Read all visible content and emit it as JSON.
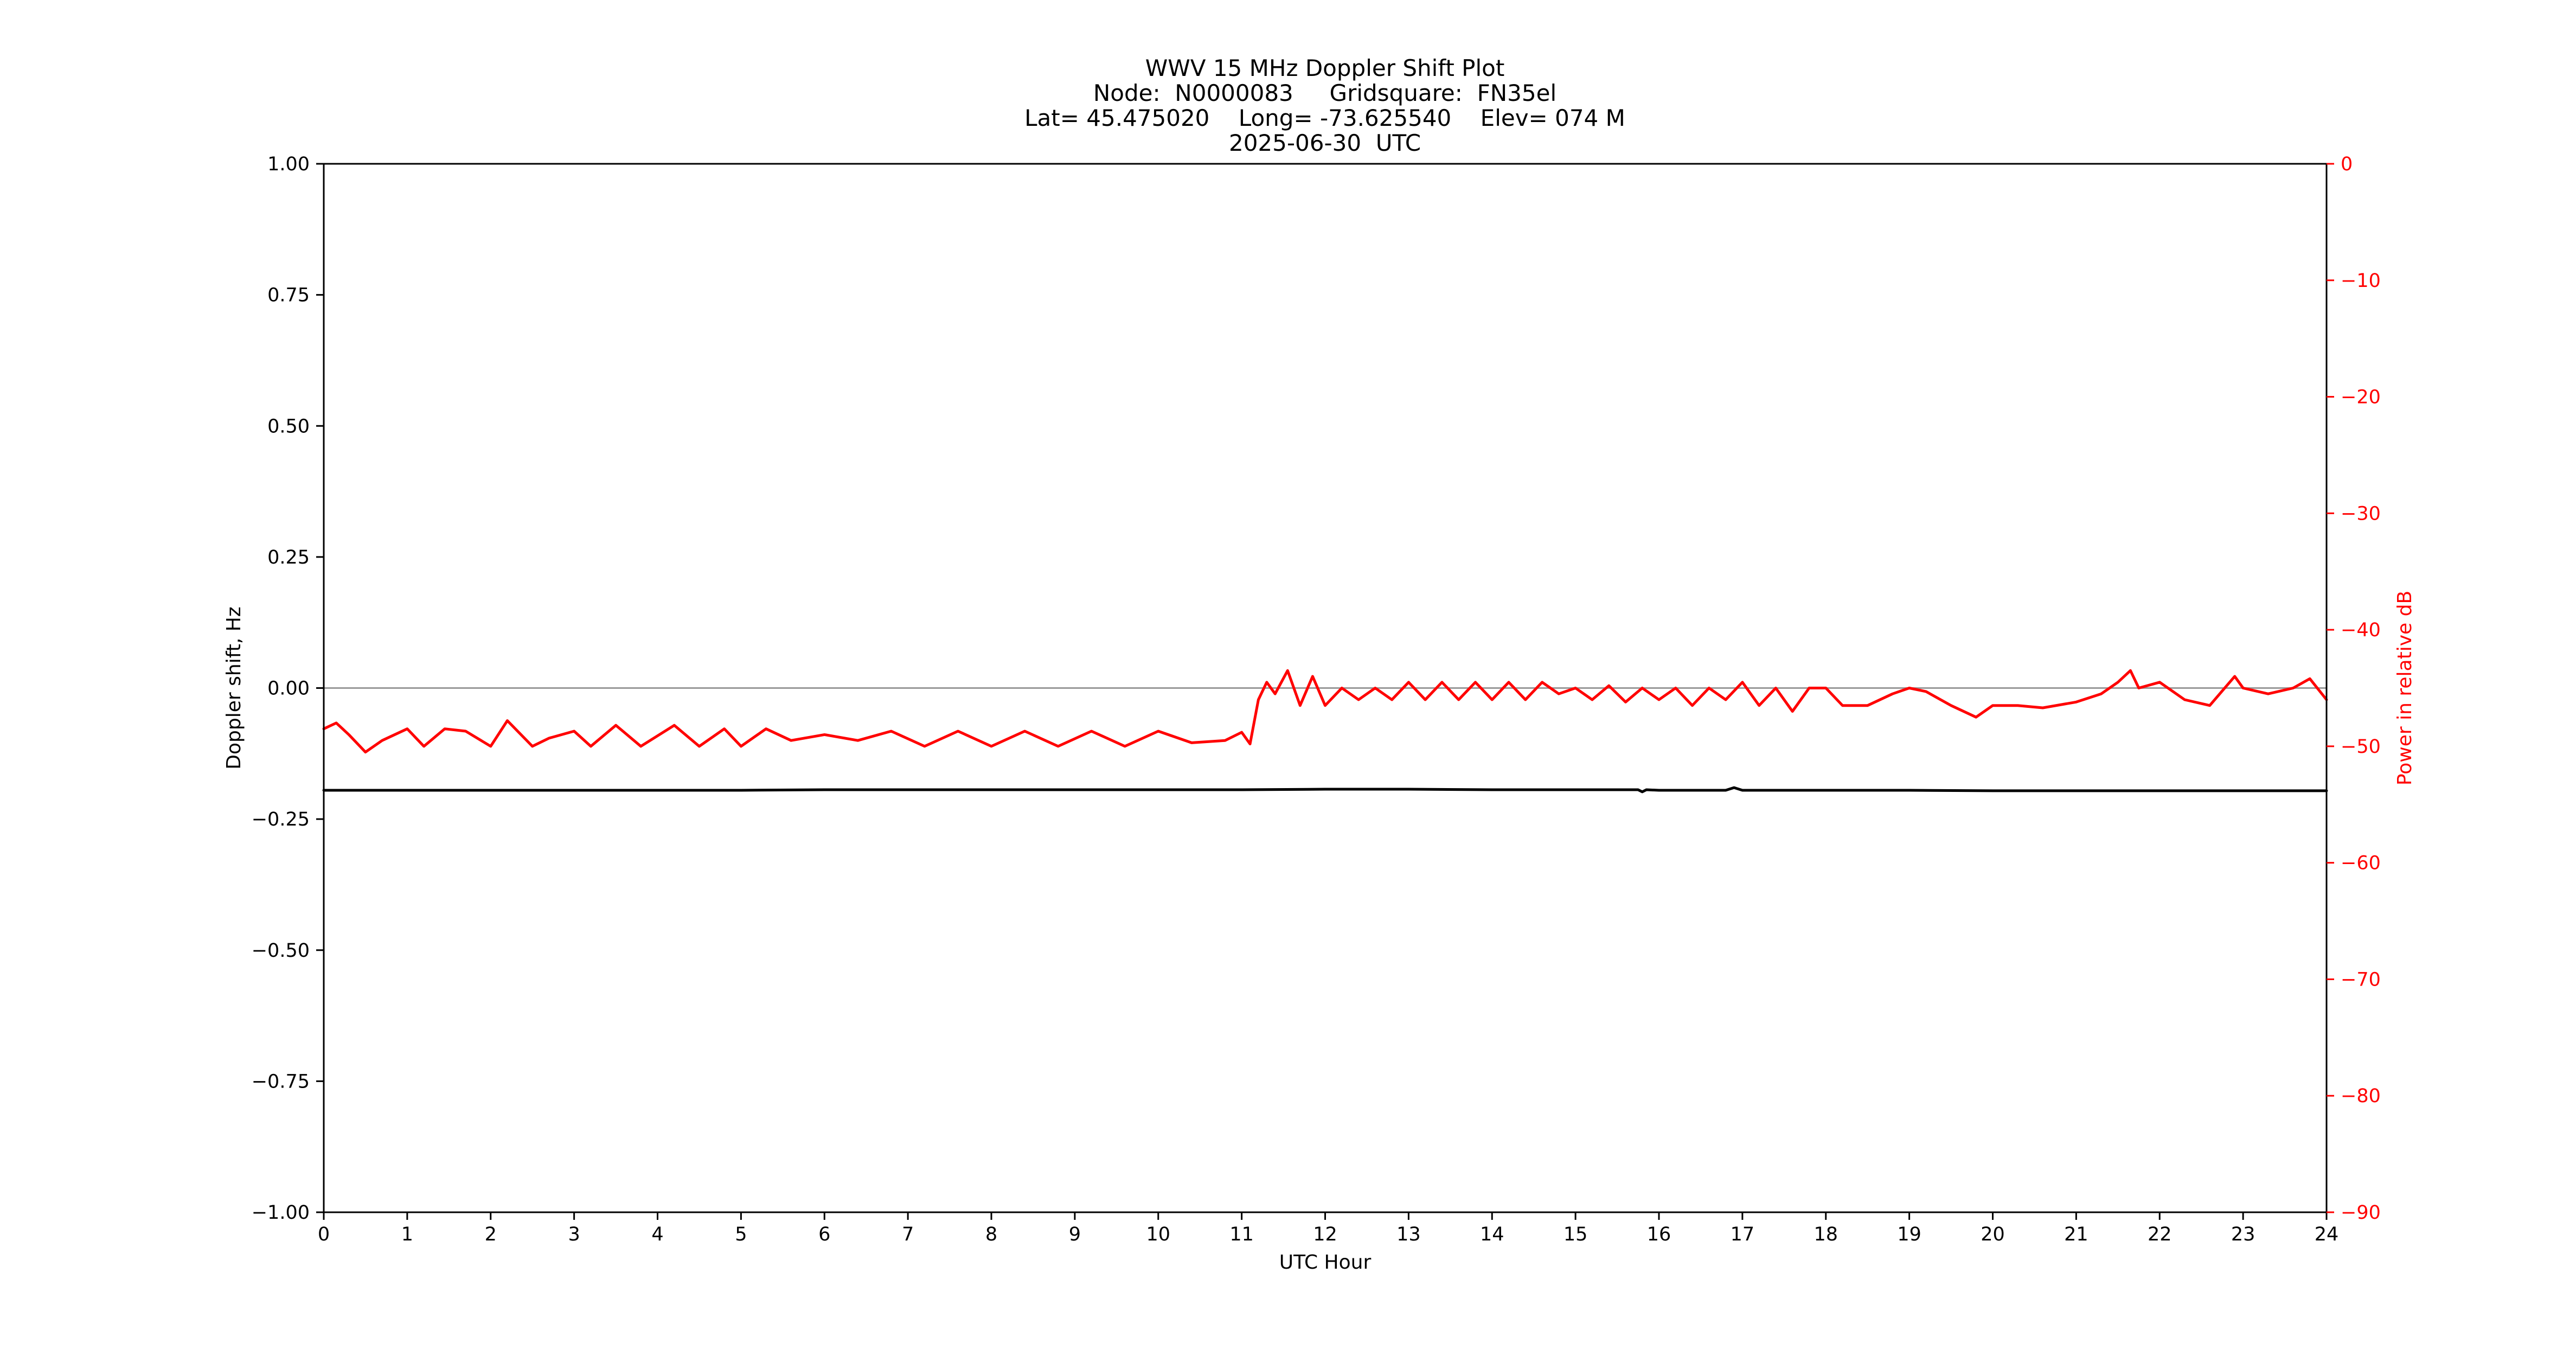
{
  "chart_data": {
    "type": "line",
    "title_lines": [
      "WWV 15 MHz Doppler Shift Plot",
      "Node:  N0000083     Gridsquare:  FN35el",
      "Lat= 45.475020    Long= -73.625540    Elev= 074 M",
      "2025-06-30  UTC"
    ],
    "xlabel": "UTC Hour",
    "ylabel": "Doppler shift, Hz",
    "y2label": "Power in relative dB",
    "xlim": [
      0,
      24
    ],
    "ylim": [
      -1.0,
      1.0
    ],
    "y2lim": [
      -90,
      0
    ],
    "x_ticks": [
      0,
      1,
      2,
      3,
      4,
      5,
      6,
      7,
      8,
      9,
      10,
      11,
      12,
      13,
      14,
      15,
      16,
      17,
      18,
      19,
      20,
      21,
      22,
      23,
      24
    ],
    "x_tick_labels": [
      "0",
      "1",
      "2",
      "3",
      "4",
      "5",
      "6",
      "7",
      "8",
      "9",
      "10",
      "11",
      "12",
      "13",
      "14",
      "15",
      "16",
      "17",
      "18",
      "19",
      "20",
      "21",
      "22",
      "23",
      "24"
    ],
    "y_ticks": [
      1.0,
      0.75,
      0.5,
      0.25,
      0.0,
      -0.25,
      -0.5,
      -0.75,
      -1.0
    ],
    "y_tick_labels": [
      "1.00",
      "0.75",
      "0.50",
      "0.25",
      "0.00",
      "−0.25",
      "−0.50",
      "−0.75",
      "−1.00"
    ],
    "y2_ticks": [
      0,
      -10,
      -20,
      -30,
      -40,
      -50,
      -60,
      -70,
      -80,
      -90
    ],
    "y2_tick_labels": [
      "0",
      "−10",
      "−20",
      "−30",
      "−40",
      "−50",
      "−60",
      "−70",
      "−80",
      "−90"
    ],
    "reference_line": {
      "y": 0.0,
      "color": "#999999"
    },
    "series": [
      {
        "axis": "left",
        "color": "#000000",
        "x": [
          0,
          1,
          2,
          3,
          4,
          5,
          6,
          7,
          8,
          9,
          10,
          11,
          12,
          13,
          14,
          15,
          15.75,
          15.8,
          15.85,
          16,
          16.8,
          16.9,
          17,
          18,
          19,
          20,
          21,
          22,
          23,
          24
        ],
        "values": [
          -0.195,
          -0.195,
          -0.195,
          -0.195,
          -0.195,
          -0.195,
          -0.194,
          -0.194,
          -0.194,
          -0.194,
          -0.194,
          -0.194,
          -0.193,
          -0.193,
          -0.194,
          -0.194,
          -0.194,
          -0.198,
          -0.194,
          -0.195,
          -0.195,
          -0.19,
          -0.195,
          -0.195,
          -0.195,
          -0.196,
          -0.196,
          -0.196,
          -0.196,
          -0.196
        ]
      },
      {
        "axis": "right",
        "color": "#ff0000",
        "x": [
          0,
          0.15,
          0.3,
          0.5,
          0.7,
          1.0,
          1.2,
          1.45,
          1.7,
          2.0,
          2.2,
          2.5,
          2.7,
          3.0,
          3.2,
          3.5,
          3.8,
          4.2,
          4.5,
          4.8,
          5.0,
          5.3,
          5.6,
          6.0,
          6.4,
          6.8,
          7.2,
          7.6,
          8.0,
          8.4,
          8.8,
          9.2,
          9.6,
          10.0,
          10.4,
          10.8,
          11.0,
          11.1,
          11.2,
          11.3,
          11.4,
          11.55,
          11.7,
          11.85,
          12.0,
          12.2,
          12.4,
          12.6,
          12.8,
          13.0,
          13.2,
          13.4,
          13.6,
          13.8,
          14.0,
          14.2,
          14.4,
          14.6,
          14.8,
          15.0,
          15.2,
          15.4,
          15.6,
          15.8,
          16.0,
          16.2,
          16.4,
          16.6,
          16.8,
          17.0,
          17.2,
          17.4,
          17.6,
          17.8,
          18.0,
          18.2,
          18.5,
          18.8,
          19.0,
          19.2,
          19.5,
          19.8,
          20.0,
          20.3,
          20.6,
          21.0,
          21.3,
          21.5,
          21.65,
          21.75,
          22.0,
          22.3,
          22.6,
          22.9,
          23.0,
          23.3,
          23.6,
          23.8,
          24.0
        ],
        "values": [
          -48.5,
          -48.0,
          -49.0,
          -50.5,
          -49.5,
          -48.5,
          -50.0,
          -48.5,
          -48.7,
          -50.0,
          -47.8,
          -50.0,
          -49.3,
          -48.7,
          -50.0,
          -48.2,
          -50.0,
          -48.2,
          -50.0,
          -48.5,
          -50.0,
          -48.5,
          -49.5,
          -49.0,
          -49.5,
          -48.7,
          -50.0,
          -48.7,
          -50.0,
          -48.7,
          -50.0,
          -48.7,
          -50.0,
          -48.7,
          -49.7,
          -49.5,
          -48.8,
          -49.8,
          -46.0,
          -44.5,
          -45.5,
          -43.5,
          -46.5,
          -44.0,
          -46.5,
          -45.0,
          -46.0,
          -45.0,
          -46.0,
          -44.5,
          -46.0,
          -44.5,
          -46.0,
          -44.5,
          -46.0,
          -44.5,
          -46.0,
          -44.5,
          -45.5,
          -45.0,
          -46.0,
          -44.8,
          -46.2,
          -45.0,
          -46.0,
          -45.0,
          -46.5,
          -45.0,
          -46.0,
          -44.5,
          -46.5,
          -45.0,
          -47.0,
          -45.0,
          -45.0,
          -46.5,
          -46.5,
          -45.5,
          -45.0,
          -45.3,
          -46.5,
          -47.5,
          -46.5,
          -46.5,
          -46.7,
          -46.2,
          -45.5,
          -44.5,
          -43.5,
          -45.0,
          -44.5,
          -46.0,
          -46.5,
          -44.0,
          -45.0,
          -45.5,
          -45.0,
          -44.2,
          -46.0
        ]
      }
    ]
  }
}
